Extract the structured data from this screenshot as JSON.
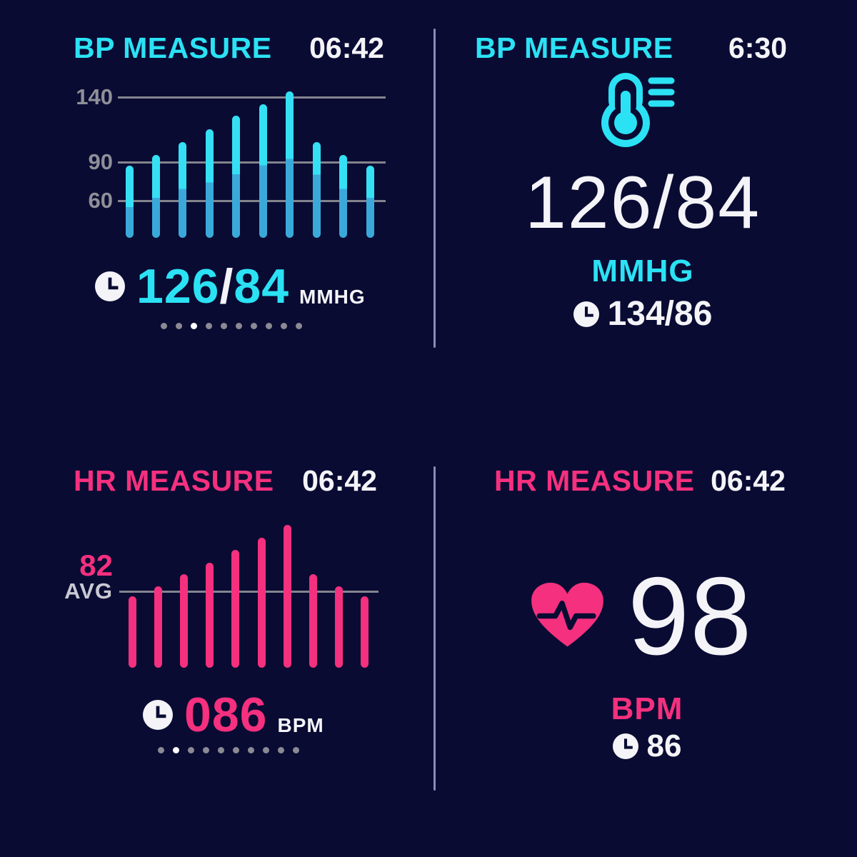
{
  "app": {
    "background_color": "#090b33",
    "divider_color": "#8f89bb"
  },
  "colors": {
    "cyan": "#2be2f4",
    "cyan_bar_top": "#35e0f4",
    "cyan_bar_bottom": "#3aa9da",
    "pink": "#f5307e",
    "white": "#f4f4f8",
    "tick_gray": "#8f8f99",
    "gridline_gray": "#84848e",
    "avg_label_gray": "#c9c9d3",
    "dot_inactive": "#8a8a94",
    "dot_active": "#ffffff"
  },
  "panels": {
    "bp_chart_panel": {
      "title": "BP MEASURE",
      "time": "06:42",
      "reading": {
        "systolic": "126",
        "slash": "/",
        "diastolic": "84",
        "unit": "MMHG"
      },
      "pagination": {
        "total": 10,
        "active_index": 2
      }
    },
    "bp_value_panel": {
      "title": "BP MEASURE",
      "time": "6:30",
      "icon": "blood-pressure-gauge-icon",
      "main_value": "126/84",
      "unit": "MMHG",
      "last_reading": "134/86"
    },
    "hr_chart_panel": {
      "title": "HR MEASURE",
      "time": "06:42",
      "avg_value": "82",
      "avg_label": "AVG",
      "reading": {
        "value": "086",
        "unit": "BPM"
      },
      "pagination": {
        "total": 10,
        "active_index": 1
      }
    },
    "hr_value_panel": {
      "title": "HR MEASURE",
      "time": "06:42",
      "icon": "heart-pulse-icon",
      "main_value": "98",
      "unit": "BPM",
      "last_reading": "86"
    }
  },
  "chart_data": [
    {
      "type": "bar",
      "name": "bp-history",
      "title": "BP MEASURE",
      "unit": "mmHg",
      "yticks": [
        140,
        90,
        60
      ],
      "ylim": [
        32,
        148
      ],
      "grid": true,
      "legend": false,
      "series": [
        {
          "name": "systolic",
          "values": [
            87,
            95,
            105,
            115,
            125,
            134,
            144,
            105,
            95,
            87
          ]
        },
        {
          "name": "diastolic",
          "values": [
            55,
            62,
            69,
            74,
            80,
            87,
            92,
            80,
            69,
            62
          ]
        }
      ]
    },
    {
      "type": "bar",
      "name": "hr-history",
      "title": "HR MEASURE",
      "unit": "BPM",
      "avg_line": 82,
      "ylim": [
        23,
        140
      ],
      "grid": "avg-line-only",
      "legend": false,
      "values": [
        78,
        86,
        95,
        104,
        114,
        123,
        133,
        95,
        86,
        78
      ]
    }
  ]
}
